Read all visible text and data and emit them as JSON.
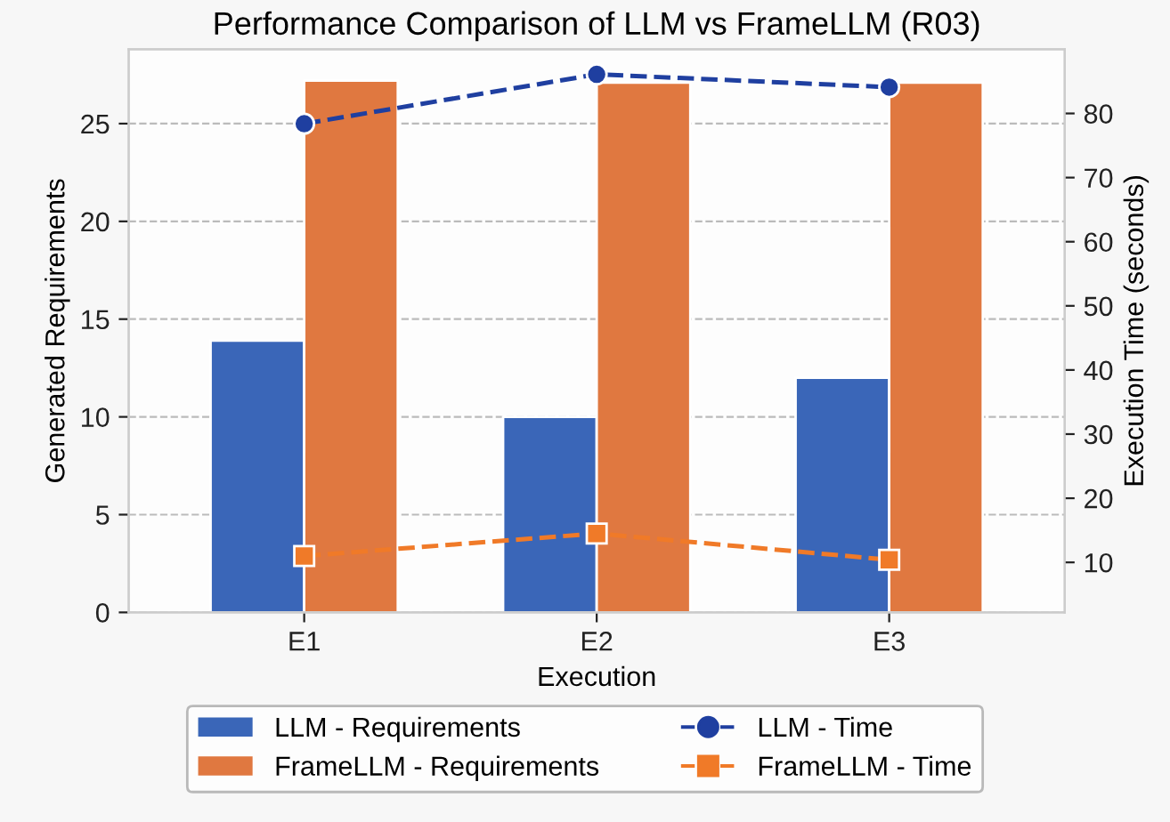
{
  "chart_data": {
    "type": "bar",
    "title": "Performance Comparison of LLM vs FrameLLM (R03)",
    "xlabel": "Execution",
    "ylabel": "Generated Requirements",
    "y2label": "Execution Time (seconds)",
    "categories": [
      "E1",
      "E2",
      "E3"
    ],
    "series": [
      {
        "name": "LLM - Requirements",
        "color": "#3a66b8",
        "values": [
          13.9,
          10.0,
          12.0
        ]
      },
      {
        "name": "FrameLLM - Requirements",
        "color": "#e07840",
        "values": [
          27.2,
          27.1,
          27.1
        ]
      },
      {
        "name": "LLM - Time",
        "type": "line",
        "axis": "y2",
        "color": "#1f3fa0",
        "marker": "circle",
        "line_style": "dashed",
        "values": [
          78.4,
          86.1,
          84.1
        ]
      },
      {
        "name": "FrameLLM - Time",
        "type": "line",
        "axis": "y2",
        "color": "#f07a28",
        "marker": "square",
        "line_style": "dashed",
        "values": [
          11.0,
          14.5,
          10.4
        ]
      }
    ],
    "ylim": [
      0,
      28.8
    ],
    "yticks": [
      0,
      5,
      10,
      15,
      20,
      25
    ],
    "y2lim": [
      2.2,
      90
    ],
    "y2ticks": [
      10,
      20,
      30,
      40,
      50,
      60,
      70,
      80
    ],
    "grid": "y",
    "legend": "bottom"
  }
}
